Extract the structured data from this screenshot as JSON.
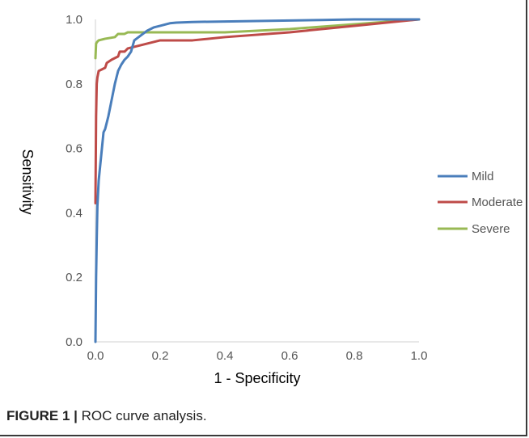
{
  "caption": {
    "label": "FIGURE 1 |",
    "text": " ROC curve analysis."
  },
  "chart_data": {
    "type": "line",
    "xlabel": "1 - Specificity",
    "ylabel": "Sensitivity",
    "xlim": [
      0,
      1
    ],
    "ylim": [
      0,
      1
    ],
    "xticks": [
      "0.0",
      "0.2",
      "0.4",
      "0.6",
      "0.8",
      "1.0"
    ],
    "yticks": [
      "0.0",
      "0.2",
      "0.4",
      "0.6",
      "0.8",
      "1.0"
    ],
    "grid": false,
    "legend_position": "right",
    "series": [
      {
        "name": "Mild",
        "color": "#4a7ebb",
        "points": [
          [
            0,
            0
          ],
          [
            0.002,
            0.2
          ],
          [
            0.004,
            0.32
          ],
          [
            0.006,
            0.42
          ],
          [
            0.01,
            0.5
          ],
          [
            0.015,
            0.55
          ],
          [
            0.02,
            0.6
          ],
          [
            0.025,
            0.65
          ],
          [
            0.03,
            0.66
          ],
          [
            0.04,
            0.7
          ],
          [
            0.05,
            0.75
          ],
          [
            0.06,
            0.8
          ],
          [
            0.07,
            0.84
          ],
          [
            0.08,
            0.86
          ],
          [
            0.09,
            0.875
          ],
          [
            0.1,
            0.885
          ],
          [
            0.11,
            0.9
          ],
          [
            0.12,
            0.935
          ],
          [
            0.14,
            0.95
          ],
          [
            0.16,
            0.965
          ],
          [
            0.18,
            0.975
          ],
          [
            0.2,
            0.98
          ],
          [
            0.23,
            0.988
          ],
          [
            0.25,
            0.99
          ],
          [
            0.3,
            0.992
          ],
          [
            0.5,
            0.995
          ],
          [
            0.7,
            0.998
          ],
          [
            0.8,
            1.0
          ],
          [
            1.0,
            1.0
          ]
        ]
      },
      {
        "name": "Moderate",
        "color": "#be4b48",
        "points": [
          [
            0,
            0.43
          ],
          [
            0.002,
            0.7
          ],
          [
            0.004,
            0.8
          ],
          [
            0.006,
            0.82
          ],
          [
            0.01,
            0.84
          ],
          [
            0.02,
            0.845
          ],
          [
            0.03,
            0.85
          ],
          [
            0.035,
            0.865
          ],
          [
            0.05,
            0.875
          ],
          [
            0.07,
            0.885
          ],
          [
            0.075,
            0.9
          ],
          [
            0.09,
            0.9
          ],
          [
            0.1,
            0.91
          ],
          [
            0.12,
            0.915
          ],
          [
            0.16,
            0.925
          ],
          [
            0.2,
            0.935
          ],
          [
            0.3,
            0.935
          ],
          [
            0.4,
            0.945
          ],
          [
            0.6,
            0.96
          ],
          [
            0.8,
            0.98
          ],
          [
            1.0,
            1.0
          ]
        ]
      },
      {
        "name": "Severe",
        "color": "#98b954",
        "points": [
          [
            0,
            0.88
          ],
          [
            0.002,
            0.925
          ],
          [
            0.005,
            0.93
          ],
          [
            0.01,
            0.935
          ],
          [
            0.03,
            0.94
          ],
          [
            0.06,
            0.945
          ],
          [
            0.07,
            0.955
          ],
          [
            0.09,
            0.955
          ],
          [
            0.1,
            0.96
          ],
          [
            0.2,
            0.96
          ],
          [
            0.4,
            0.96
          ],
          [
            0.6,
            0.97
          ],
          [
            0.8,
            0.985
          ],
          [
            1.0,
            1.0
          ]
        ]
      }
    ]
  }
}
